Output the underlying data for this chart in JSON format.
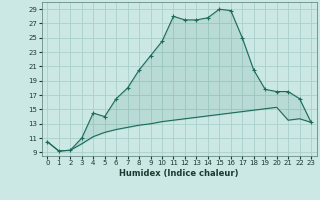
{
  "xlabel": "Humidex (Indice chaleur)",
  "background_color": "#cce8e4",
  "line_color": "#1a6b5a",
  "grid_color": "#aacfcc",
  "x": [
    0,
    1,
    2,
    3,
    4,
    5,
    6,
    7,
    8,
    9,
    10,
    11,
    12,
    13,
    14,
    15,
    16,
    17,
    18,
    19,
    20,
    21,
    22,
    23
  ],
  "y_upper": [
    10.5,
    9.2,
    9.3,
    11.0,
    14.5,
    14.0,
    16.5,
    18.0,
    20.5,
    22.5,
    24.5,
    28.0,
    27.5,
    27.5,
    27.8,
    29.0,
    28.8,
    25.0,
    20.5,
    17.8,
    17.5,
    17.5,
    16.5,
    13.2
  ],
  "y_lower": [
    10.5,
    9.2,
    9.3,
    10.2,
    11.2,
    11.8,
    12.2,
    12.5,
    12.8,
    13.0,
    13.3,
    13.5,
    13.7,
    13.9,
    14.1,
    14.3,
    14.5,
    14.7,
    14.9,
    15.1,
    15.3,
    13.5,
    13.7,
    13.2
  ],
  "ylim": [
    8.5,
    30
  ],
  "xlim": [
    -0.5,
    23.5
  ],
  "yticks": [
    9,
    11,
    13,
    15,
    17,
    19,
    21,
    23,
    25,
    27,
    29
  ],
  "xticks": [
    0,
    1,
    2,
    3,
    4,
    5,
    6,
    7,
    8,
    9,
    10,
    11,
    12,
    13,
    14,
    15,
    16,
    17,
    18,
    19,
    20,
    21,
    22,
    23
  ],
  "tick_fontsize": 5.0,
  "xlabel_fontsize": 6.0
}
